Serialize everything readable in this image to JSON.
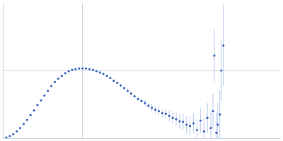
{
  "chart_data": {
    "type": "scatter",
    "color": "#3a66bf",
    "marker": "circle",
    "grid": true,
    "tick_labels": false,
    "xlim": [
      0,
      400
    ],
    "ylim": [
      0,
      200
    ],
    "xticks": [
      115
    ],
    "yticks": [
      100
    ],
    "x": [
      5,
      10,
      15,
      20,
      25,
      30,
      35,
      40,
      45,
      50,
      55,
      60,
      65,
      70,
      75,
      80,
      85,
      90,
      95,
      100,
      105,
      110,
      115,
      120,
      125,
      130,
      135,
      140,
      145,
      150,
      155,
      160,
      165,
      170,
      175,
      180,
      185,
      190,
      195,
      200,
      205,
      210,
      215,
      220,
      225,
      230,
      235,
      240,
      245,
      250,
      255,
      260,
      265,
      270,
      275,
      280,
      285,
      290,
      295,
      300,
      303,
      305,
      308,
      310,
      313,
      315,
      318
    ],
    "values": [
      1,
      3,
      6,
      10,
      15,
      21,
      27,
      34,
      41,
      49,
      56,
      63,
      70,
      77,
      83,
      88,
      92,
      96,
      99,
      101,
      102,
      103,
      103,
      103,
      102,
      101,
      99,
      97,
      95,
      92,
      89,
      85,
      82,
      78,
      74,
      70,
      66,
      62,
      58,
      55,
      52,
      48,
      45,
      42,
      40,
      37,
      36,
      33,
      30,
      28,
      25,
      24,
      20,
      18,
      22,
      12,
      26,
      10,
      30,
      15,
      40,
      122,
      8,
      20,
      35,
      100,
      137
    ],
    "errors": [
      0.5,
      0.5,
      0.5,
      0.5,
      0.5,
      0.5,
      0.5,
      0.5,
      0.5,
      0.5,
      0.5,
      0.5,
      0.5,
      0.5,
      0.5,
      0.5,
      0.5,
      0.5,
      0.5,
      0.5,
      0.5,
      0.5,
      0.5,
      0.5,
      0.5,
      0.5,
      0.5,
      1,
      1,
      1,
      1,
      1.5,
      1.5,
      2,
      2,
      2,
      2.5,
      3,
      3,
      3,
      4,
      4,
      5,
      5,
      6,
      6,
      7,
      8,
      9,
      10,
      11,
      12,
      13,
      14,
      15,
      16,
      18,
      20,
      22,
      24,
      26,
      40,
      30,
      32,
      36,
      45,
      60
    ]
  }
}
